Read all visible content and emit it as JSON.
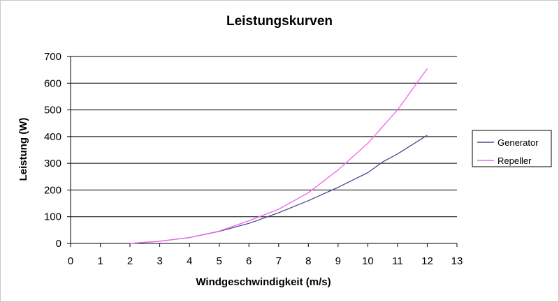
{
  "chart_data": {
    "type": "line",
    "title": "Leistungskurven",
    "xlabel": "Windgeschwindigkeit (m/s)",
    "ylabel": "Leistung (W)",
    "xlim": [
      0,
      13
    ],
    "ylim": [
      0,
      700
    ],
    "xticks": [
      0,
      1,
      2,
      3,
      4,
      5,
      6,
      7,
      8,
      9,
      10,
      11,
      12,
      13
    ],
    "yticks": [
      0,
      100,
      200,
      300,
      400,
      500,
      600,
      700
    ],
    "grid": "horizontal",
    "legend_position": "right",
    "series": [
      {
        "name": "Generator",
        "color": "#4b4b8f",
        "x": [
          2,
          3,
          4,
          5,
          6,
          7,
          8,
          9,
          10,
          10.5,
          11,
          12
        ],
        "y": [
          0,
          8,
          22,
          45,
          75,
          115,
          160,
          210,
          265,
          305,
          335,
          405
        ]
      },
      {
        "name": "Repeller",
        "color": "#ee66ee",
        "x": [
          2,
          3,
          4,
          5,
          6,
          7,
          8,
          9,
          10,
          11,
          12
        ],
        "y": [
          0,
          8,
          22,
          46,
          85,
          128,
          190,
          275,
          375,
          500,
          655
        ]
      }
    ]
  }
}
